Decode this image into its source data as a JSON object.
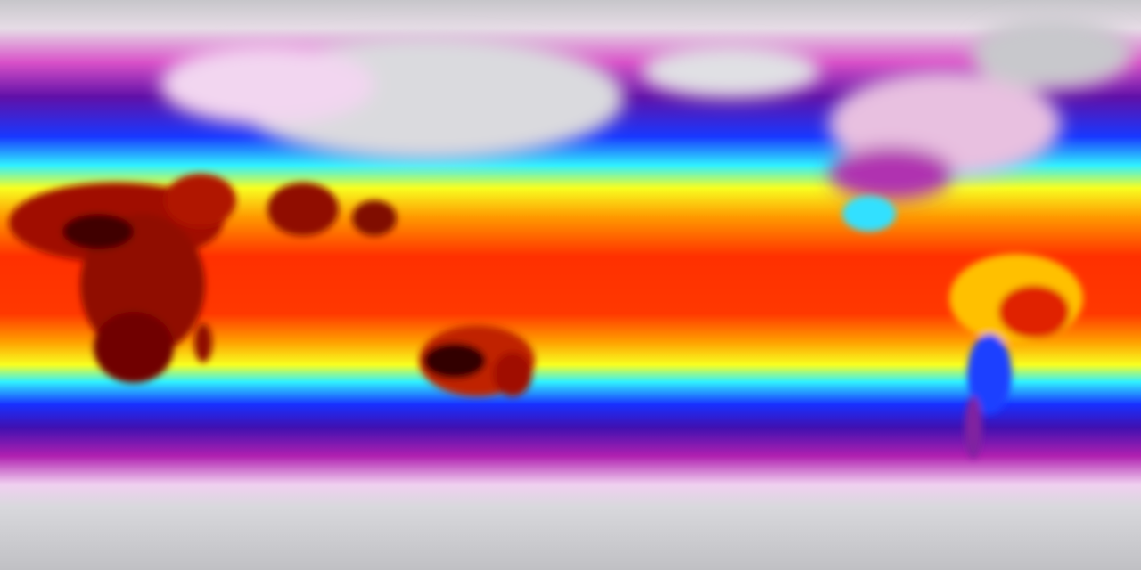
{
  "map": {
    "projection": "equirectangular",
    "variable": "temperature",
    "colormap": {
      "polar": "#c6c6ca",
      "cold_light": "#f0d8f0",
      "cold": "#c020b0",
      "cool_deep": "#5010a0",
      "cool": "#1030ff",
      "mild": "#30f0ff",
      "warm": "#ffff20",
      "hot": "#ff9000",
      "hotter": "#ff2000",
      "hottest": "#600000"
    }
  }
}
